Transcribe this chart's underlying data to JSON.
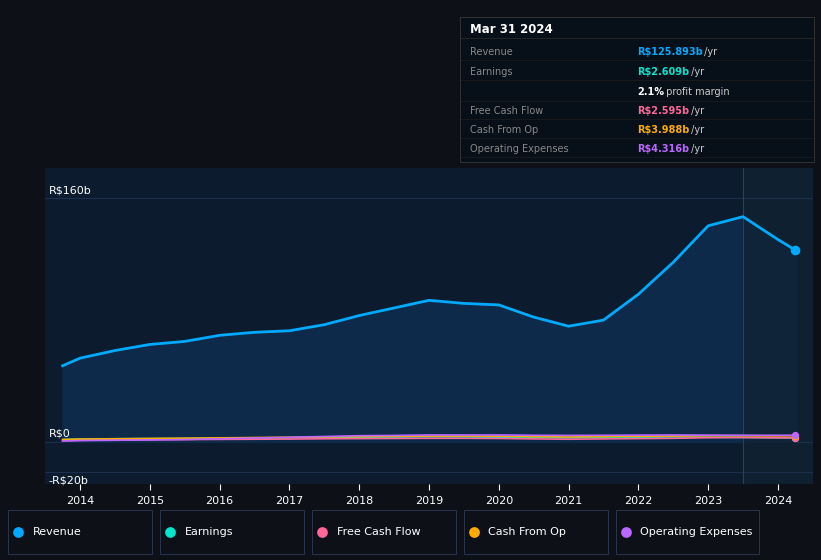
{
  "bg_color": "#0d1117",
  "chart_bg": "#0d1b2e",
  "chart_bg_right": "#111d2e",
  "title": "Mar 31 2024",
  "ytick_vals": [
    160,
    0,
    -20
  ],
  "ytick_labels": [
    "R$160b",
    "R$0",
    "-R$20b"
  ],
  "xlim": [
    2013.5,
    2024.5
  ],
  "ylim": [
    -28,
    180
  ],
  "years": [
    2013.75,
    2014.0,
    2014.5,
    2015.0,
    2015.5,
    2016.0,
    2016.5,
    2017.0,
    2017.5,
    2018.0,
    2018.5,
    2019.0,
    2019.5,
    2020.0,
    2020.5,
    2021.0,
    2021.5,
    2022.0,
    2022.5,
    2023.0,
    2023.5,
    2024.0,
    2024.25
  ],
  "revenue": [
    50,
    55,
    60,
    64,
    66,
    70,
    72,
    73,
    77,
    83,
    88,
    93,
    91,
    90,
    82,
    76,
    80,
    97,
    118,
    142,
    148,
    133,
    126
  ],
  "earnings": [
    1.5,
    1.8,
    2.0,
    2.1,
    2.2,
    2.4,
    2.5,
    2.6,
    2.8,
    3.0,
    3.1,
    3.3,
    3.2,
    3.0,
    2.8,
    2.6,
    2.8,
    3.0,
    3.2,
    3.0,
    2.9,
    2.7,
    2.6
  ],
  "free_cash_flow": [
    0.8,
    1.0,
    1.2,
    1.4,
    1.5,
    1.6,
    1.7,
    1.8,
    2.0,
    2.1,
    2.2,
    2.3,
    2.3,
    2.2,
    1.9,
    1.7,
    1.9,
    2.1,
    2.3,
    2.7,
    2.8,
    2.6,
    2.6
  ],
  "cash_from_op": [
    1.5,
    1.8,
    2.0,
    2.2,
    2.4,
    2.6,
    2.8,
    3.0,
    3.2,
    3.4,
    3.6,
    3.8,
    3.8,
    3.7,
    3.4,
    3.2,
    3.4,
    3.6,
    3.8,
    4.0,
    4.0,
    3.9,
    4.0
  ],
  "op_expenses": [
    0.5,
    0.8,
    1.0,
    1.2,
    1.5,
    2.0,
    2.5,
    3.0,
    3.5,
    4.0,
    4.2,
    4.5,
    4.5,
    4.5,
    4.3,
    4.2,
    4.3,
    4.4,
    4.5,
    4.4,
    4.3,
    4.3,
    4.3
  ],
  "revenue_color": "#00aaff",
  "earnings_color": "#00e5cc",
  "fcf_color": "#ff6699",
  "cashop_color": "#ffaa00",
  "opex_color": "#bb66ff",
  "fill_color": "#0d2a4a",
  "grid_color": "#1e3050",
  "divider_color": "#2a4060",
  "tooltip_bg": "#070f18",
  "tooltip_border": "#333333",
  "info_rows": [
    {
      "label": "Revenue",
      "value": "R$125.893b",
      "unit": " /yr",
      "color": "#00aaff",
      "bold_val": true
    },
    {
      "label": "Earnings",
      "value": "R$2.609b",
      "unit": " /yr",
      "color": "#00e5cc",
      "bold_val": true
    },
    {
      "label": "",
      "value": "2.1%",
      "unit": " profit margin",
      "color": "#ffffff",
      "bold_val": true
    },
    {
      "label": "Free Cash Flow",
      "value": "R$2.595b",
      "unit": " /yr",
      "color": "#ff6699",
      "bold_val": true
    },
    {
      "label": "Cash From Op",
      "value": "R$3.988b",
      "unit": " /yr",
      "color": "#ffaa00",
      "bold_val": true
    },
    {
      "label": "Operating Expenses",
      "value": "R$4.316b",
      "unit": " /yr",
      "color": "#bb66ff",
      "bold_val": true
    }
  ],
  "legend_items": [
    {
      "label": "Revenue",
      "color": "#00aaff"
    },
    {
      "label": "Earnings",
      "color": "#00e5cc"
    },
    {
      "label": "Free Cash Flow",
      "color": "#ff6699"
    },
    {
      "label": "Cash From Op",
      "color": "#ffaa00"
    },
    {
      "label": "Operating Expenses",
      "color": "#bb66ff"
    }
  ]
}
